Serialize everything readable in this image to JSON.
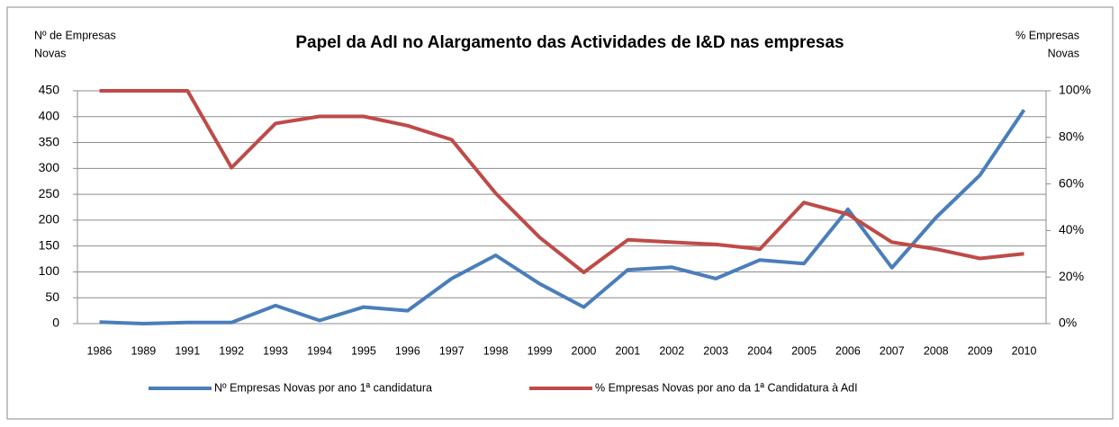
{
  "chart_data": {
    "type": "line",
    "title": "Papel da AdI no Alargamento das Actividades de I&D nas empresas",
    "y_label": [
      "Nº de  Empresas",
      "Novas"
    ],
    "y2_label": [
      "% Empresas",
      "Novas"
    ],
    "categories": [
      "1986",
      "1989",
      "1991",
      "1992",
      "1993",
      "1994",
      "1995",
      "1996",
      "1997",
      "1998",
      "1999",
      "2000",
      "2001",
      "2002",
      "2003",
      "2004",
      "2005",
      "2006",
      "2007",
      "2008",
      "2009",
      "2010"
    ],
    "series": [
      {
        "name": "Nº Empresas Novas por ano 1ª candidatura",
        "color": "#4a7ebb",
        "values": [
          3,
          0,
          2,
          2,
          35,
          6,
          32,
          25,
          87,
          132,
          77,
          32,
          104,
          109,
          87,
          123,
          116,
          221,
          108,
          205,
          287,
          413
        ]
      },
      {
        "name": "% Empresas Novas por ano da 1ª Candidatura à AdI",
        "color": "#be4b48",
        "axis": "y2",
        "values": [
          100,
          100,
          100,
          67,
          86,
          89,
          89,
          85,
          79,
          56,
          37,
          22,
          36,
          35,
          34,
          32,
          52,
          47,
          35,
          32,
          28,
          30
        ]
      }
    ],
    "ylim": [
      0,
      450
    ],
    "yticks": [
      0,
      50,
      100,
      150,
      200,
      250,
      300,
      350,
      400,
      450
    ],
    "y2lim": [
      0,
      100
    ],
    "y2ticks": [
      {
        "value": 0,
        "label": "0%"
      },
      {
        "value": 20,
        "label": "20%"
      },
      {
        "value": 40,
        "label": "40%"
      },
      {
        "value": 60,
        "label": "60%"
      },
      {
        "value": 80,
        "label": "80%"
      },
      {
        "value": 100,
        "label": "100%"
      }
    ],
    "grid": true,
    "legend": "bottom"
  }
}
